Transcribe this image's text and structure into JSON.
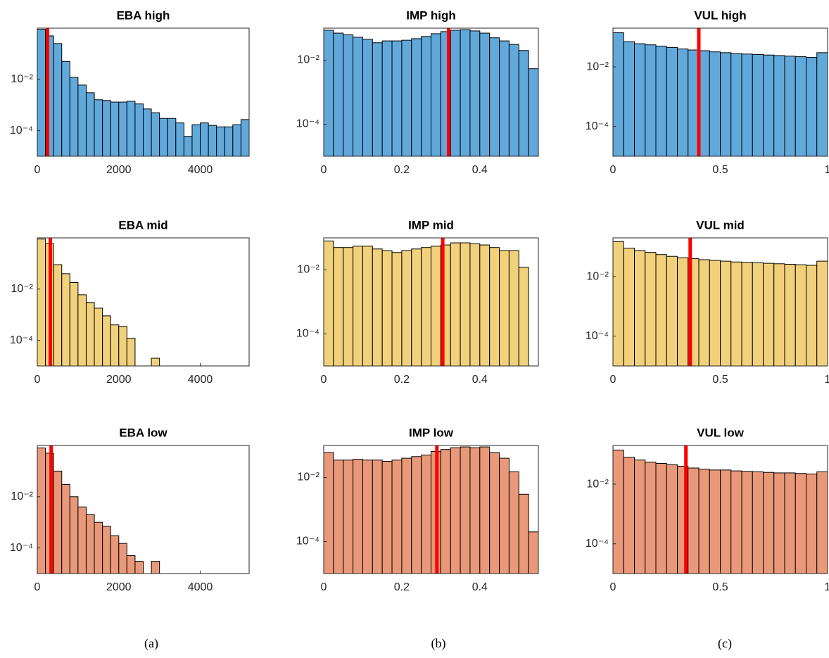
{
  "chart_data": [
    {
      "type": "histogram",
      "title": "EBA high",
      "color": "#62a9db",
      "log_y": true,
      "bins": [
        0,
        200,
        400,
        600,
        800,
        1000,
        1200,
        1400,
        1600,
        1800,
        2000,
        2200,
        2400,
        2600,
        2800,
        3000,
        3200,
        3400,
        3600,
        3800,
        4000,
        4200,
        4400,
        4600,
        4800,
        5000,
        5200
      ],
      "values": [
        0.9,
        0.5,
        0.25,
        0.05,
        0.012,
        0.006,
        0.003,
        0.0016,
        0.0015,
        0.0013,
        0.0013,
        0.0014,
        0.0011,
        0.0007,
        0.0005,
        0.0003,
        0.0003,
        0.0002,
        6e-05,
        0.00017,
        0.0002,
        0.00016,
        0.00014,
        0.00014,
        0.00017,
        0.00027
      ],
      "xlim": [
        0,
        5200
      ],
      "xticks": [
        0,
        2000,
        4000
      ],
      "ylim": [
        1e-05,
        1
      ],
      "yticks": [
        {
          "value": 0.01,
          "label": "10⁻²"
        },
        {
          "value": 0.0001,
          "label": "10⁻⁴"
        }
      ],
      "threshold": 250,
      "threshold_color": "#ff0000"
    },
    {
      "type": "histogram",
      "title": "IMP high",
      "color": "#62a9db",
      "log_y": true,
      "bins": [
        0,
        0.025,
        0.05,
        0.075,
        0.1,
        0.125,
        0.15,
        0.175,
        0.2,
        0.225,
        0.25,
        0.275,
        0.3,
        0.325,
        0.35,
        0.375,
        0.4,
        0.425,
        0.45,
        0.475,
        0.5,
        0.525,
        0.55
      ],
      "values": [
        0.086,
        0.07,
        0.062,
        0.052,
        0.045,
        0.035,
        0.04,
        0.04,
        0.042,
        0.047,
        0.055,
        0.067,
        0.078,
        0.086,
        0.09,
        0.082,
        0.07,
        0.05,
        0.04,
        0.031,
        0.02,
        0.0054
      ],
      "xlim": [
        0,
        0.55
      ],
      "xticks": [
        0,
        0.2,
        0.4
      ],
      "ylim": [
        1e-05,
        0.1
      ],
      "yticks": [
        {
          "value": 0.01,
          "label": "10⁻²"
        },
        {
          "value": 0.0001,
          "label": "10⁻⁴"
        }
      ],
      "threshold": 0.32,
      "threshold_color": "#ff0000"
    },
    {
      "type": "histogram",
      "title": "VUL high",
      "color": "#62a9db",
      "log_y": true,
      "bins": [
        0,
        0.05,
        0.1,
        0.15,
        0.2,
        0.25,
        0.3,
        0.35,
        0.4,
        0.45,
        0.5,
        0.55,
        0.6,
        0.65,
        0.7,
        0.75,
        0.8,
        0.85,
        0.9,
        0.95,
        1
      ],
      "values": [
        0.14,
        0.07,
        0.06,
        0.055,
        0.05,
        0.045,
        0.04,
        0.037,
        0.035,
        0.032,
        0.03,
        0.028,
        0.027,
        0.026,
        0.025,
        0.024,
        0.023,
        0.022,
        0.021,
        0.03
      ],
      "xlim": [
        0,
        1
      ],
      "xticks": [
        0,
        0.5,
        1
      ],
      "ylim": [
        1e-05,
        0.2
      ],
      "yticks": [
        {
          "value": 0.01,
          "label": "10⁻²"
        },
        {
          "value": 0.0001,
          "label": "10⁻⁴"
        }
      ],
      "threshold": 0.4,
      "threshold_color": "#ff0000"
    },
    {
      "type": "histogram",
      "title": "EBA mid",
      "color": "#f1d17b",
      "log_y": true,
      "bins": [
        0,
        200,
        400,
        600,
        800,
        1000,
        1200,
        1400,
        1600,
        1800,
        2000,
        2200,
        2400,
        2600,
        2800,
        3000
      ],
      "values": [
        0.9,
        0.6,
        0.09,
        0.04,
        0.018,
        0.006,
        0.003,
        0.0018,
        0.0009,
        0.0004,
        0.00035,
        0.00012,
        0,
        0,
        2e-05
      ],
      "xlim": [
        0,
        5200
      ],
      "xticks": [
        0,
        2000,
        4000
      ],
      "ylim": [
        1e-05,
        1
      ],
      "yticks": [
        {
          "value": 0.01,
          "label": "10⁻²"
        },
        {
          "value": 0.0001,
          "label": "10⁻⁴"
        }
      ],
      "threshold": 320,
      "threshold_color": "#ff0000"
    },
    {
      "type": "histogram",
      "title": "IMP mid",
      "color": "#f1d17b",
      "log_y": true,
      "bins": [
        0,
        0.025,
        0.05,
        0.075,
        0.1,
        0.125,
        0.15,
        0.175,
        0.2,
        0.225,
        0.25,
        0.275,
        0.3,
        0.325,
        0.35,
        0.375,
        0.4,
        0.425,
        0.45,
        0.475,
        0.5,
        0.525,
        0.55
      ],
      "values": [
        0.08,
        0.05,
        0.05,
        0.055,
        0.055,
        0.045,
        0.04,
        0.035,
        0.04,
        0.045,
        0.05,
        0.055,
        0.06,
        0.07,
        0.07,
        0.065,
        0.06,
        0.05,
        0.04,
        0.04,
        0.012,
        0
      ],
      "xlim": [
        0,
        0.55
      ],
      "xticks": [
        0,
        0.2,
        0.4
      ],
      "ylim": [
        1e-05,
        0.1
      ],
      "yticks": [
        {
          "value": 0.01,
          "label": "10⁻²"
        },
        {
          "value": 0.0001,
          "label": "10⁻⁴"
        }
      ],
      "threshold": 0.305,
      "threshold_color": "#ff0000"
    },
    {
      "type": "histogram",
      "title": "VUL mid",
      "color": "#f1d17b",
      "log_y": true,
      "bins": [
        0,
        0.05,
        0.1,
        0.15,
        0.2,
        0.25,
        0.3,
        0.35,
        0.4,
        0.45,
        0.5,
        0.55,
        0.6,
        0.65,
        0.7,
        0.75,
        0.8,
        0.85,
        0.9,
        0.95,
        1
      ],
      "values": [
        0.15,
        0.09,
        0.075,
        0.065,
        0.055,
        0.048,
        0.043,
        0.04,
        0.037,
        0.035,
        0.033,
        0.031,
        0.03,
        0.029,
        0.028,
        0.027,
        0.026,
        0.025,
        0.024,
        0.033
      ],
      "xlim": [
        0,
        1
      ],
      "xticks": [
        0,
        0.5,
        1
      ],
      "ylim": [
        1e-05,
        0.2
      ],
      "yticks": [
        {
          "value": 0.01,
          "label": "10⁻²"
        },
        {
          "value": 0.0001,
          "label": "10⁻⁴"
        }
      ],
      "threshold": 0.36,
      "threshold_color": "#ff0000"
    },
    {
      "type": "histogram",
      "title": "EBA low",
      "color": "#e9997a",
      "log_y": true,
      "bins": [
        0,
        200,
        400,
        600,
        800,
        1000,
        1200,
        1400,
        1600,
        1800,
        2000,
        2200,
        2400,
        2600,
        2800,
        3000
      ],
      "values": [
        0.8,
        0.5,
        0.1,
        0.03,
        0.01,
        0.004,
        0.002,
        0.001,
        0.0007,
        0.0003,
        0.00015,
        5e-05,
        3e-05,
        0,
        3e-05
      ],
      "xlim": [
        0,
        5200
      ],
      "xticks": [
        0,
        2000,
        4000
      ],
      "ylim": [
        1e-05,
        1
      ],
      "yticks": [
        {
          "value": 0.01,
          "label": "10⁻²"
        },
        {
          "value": 0.0001,
          "label": "10⁻⁴"
        }
      ],
      "threshold": 340,
      "threshold_color": "#ff0000"
    },
    {
      "type": "histogram",
      "title": "IMP low",
      "color": "#e9997a",
      "log_y": true,
      "bins": [
        0,
        0.025,
        0.05,
        0.075,
        0.1,
        0.125,
        0.15,
        0.175,
        0.2,
        0.225,
        0.25,
        0.275,
        0.3,
        0.325,
        0.35,
        0.375,
        0.4,
        0.425,
        0.45,
        0.475,
        0.5,
        0.525,
        0.55
      ],
      "values": [
        0.06,
        0.035,
        0.035,
        0.037,
        0.035,
        0.035,
        0.032,
        0.035,
        0.04,
        0.045,
        0.05,
        0.065,
        0.075,
        0.085,
        0.09,
        0.085,
        0.09,
        0.06,
        0.04,
        0.015,
        0.003,
        0.0002
      ],
      "xlim": [
        0,
        0.55
      ],
      "xticks": [
        0,
        0.2,
        0.4
      ],
      "ylim": [
        1e-05,
        0.1
      ],
      "yticks": [
        {
          "value": 0.01,
          "label": "10⁻²"
        },
        {
          "value": 0.0001,
          "label": "10⁻⁴"
        }
      ],
      "threshold": 0.29,
      "threshold_color": "#ff0000"
    },
    {
      "type": "histogram",
      "title": "VUL low",
      "color": "#e9997a",
      "log_y": true,
      "bins": [
        0,
        0.05,
        0.1,
        0.15,
        0.2,
        0.25,
        0.3,
        0.35,
        0.4,
        0.45,
        0.5,
        0.55,
        0.6,
        0.65,
        0.7,
        0.75,
        0.8,
        0.85,
        0.9,
        0.95,
        1
      ],
      "values": [
        0.14,
        0.08,
        0.065,
        0.055,
        0.05,
        0.045,
        0.04,
        0.035,
        0.032,
        0.03,
        0.03,
        0.028,
        0.027,
        0.026,
        0.025,
        0.024,
        0.024,
        0.023,
        0.022,
        0.026
      ],
      "xlim": [
        0,
        1
      ],
      "xticks": [
        0,
        0.5,
        1
      ],
      "ylim": [
        1e-05,
        0.2
      ],
      "yticks": [
        {
          "value": 0.01,
          "label": "10⁻²"
        },
        {
          "value": 0.0001,
          "label": "10⁻⁴"
        }
      ],
      "threshold": 0.34,
      "threshold_color": "#ff0000"
    }
  ],
  "captions": [
    "(a)",
    "(b)",
    "(c)"
  ]
}
